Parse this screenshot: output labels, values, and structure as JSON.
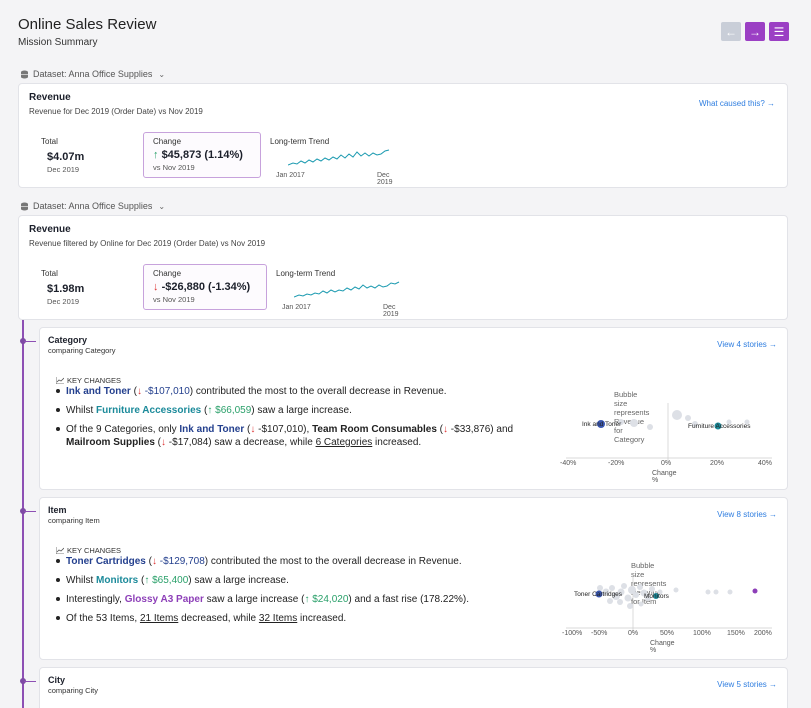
{
  "header": {
    "title": "Online Sales Review",
    "subtitle": "Mission Summary"
  },
  "nav": {
    "back_icon": "←",
    "next_icon": "→",
    "menu_icon": "☰"
  },
  "colors": {
    "accent": "#9b3fc4",
    "link": "#2f7ee0",
    "decrease": "#d33333",
    "increase": "#2aa06a",
    "timeline": "#8d4fb4"
  },
  "overview_1": {
    "dataset_label": "Dataset: Anna Office Supplies",
    "title": "Revenue",
    "subtitle": "Revenue for Dec 2019 (Order Date) vs Nov 2019",
    "link": "What caused this? →",
    "total_label": "Total",
    "total_value": "$4.07m",
    "total_date": "Dec 2019",
    "change_label": "Change",
    "change_arrow": "↑",
    "change_value": "$45,873 (1.14%)",
    "change_vs": "vs Nov 2019",
    "trend_label": "Long-term Trend",
    "trend_start": "Jan 2017",
    "trend_end": "Dec 2019"
  },
  "overview_2": {
    "dataset_label": "Dataset: Anna Office Supplies",
    "title": "Revenue",
    "subtitle": "Revenue filtered by Online for Dec 2019 (Order Date) vs Nov 2019",
    "total_label": "Total",
    "total_value": "$1.98m",
    "total_date": "Dec 2019",
    "change_label": "Change",
    "change_arrow": "↓",
    "change_value": "-$26,880 (-1.34%)",
    "change_vs": "vs Nov 2019",
    "trend_label": "Long-term Trend",
    "trend_start": "Jan 2017",
    "trend_end": "Dec 2019"
  },
  "category": {
    "title": "Category",
    "subtitle": "comparing Category",
    "link": "View 4 stories →",
    "key_changes": "KEY CHANGES",
    "b1_name": "Ink and Toner",
    "b1_arrow": "↓",
    "b1_val": "-$107,010",
    "b1_rest": "contributed the most to the overall decrease in Revenue.",
    "b2_pre": "Whilst",
    "b2_name": "Furniture Accessories",
    "b2_val": "↑ $66,059",
    "b2_rest": "saw a large increase.",
    "b3_pre": "Of the 9 Categories, only",
    "b3_n1": "Ink and Toner",
    "b3_v1": "-$107,010",
    "b3_n2": "Team Room Consumables",
    "b3_v2": "-$33,876",
    "b3_and": "and",
    "b3_n3": "Mailroom Supplies",
    "b3_v3": "-$17,084",
    "b3_mid": "saw a decrease, while",
    "b3_link": "6 Categories",
    "b3_end": "increased.",
    "bubble_note": "Bubble size represents Revenue for Category",
    "xlabel": "Change %",
    "ticks": [
      "-40%",
      "-20%",
      "0%",
      "20%",
      "40%"
    ],
    "label_a": "Ink and Toner",
    "label_b": "Furniture Accessories"
  },
  "item": {
    "title": "Item",
    "subtitle": "comparing Item",
    "link": "View 8 stories →",
    "key_changes": "KEY CHANGES",
    "b1_name": "Toner Cartridges",
    "b1_arrow": "↓",
    "b1_val": "-$129,708",
    "b1_rest": "contributed the most to the overall decrease in Revenue.",
    "b2_pre": "Whilst",
    "b2_name": "Monitors",
    "b2_val": "↑ $65,400",
    "b2_rest": "saw a large increase.",
    "b3_pre": "Interestingly,",
    "b3_name": "Glossy A3 Paper",
    "b3_mid": "saw a large increase (",
    "b3_val": "↑ $24,020",
    "b3_rest": ") and a fast rise (178.22%).",
    "b4_pre": "Of the 53 Items,",
    "b4_l1": "21 Items",
    "b4_mid": "decreased, while",
    "b4_l2": "32 Items",
    "b4_end": "increased.",
    "bubble_note": "Bubble size represents Revenue for Item",
    "xlabel": "Change %",
    "ticks": [
      "-100%",
      "-50%",
      "0%",
      "50%",
      "100%",
      "150%",
      "200%"
    ],
    "label_a": "Toner Cartridges",
    "label_b": "Monitors"
  },
  "city": {
    "title": "City",
    "subtitle": "comparing City",
    "link": "View 5 stories →"
  }
}
